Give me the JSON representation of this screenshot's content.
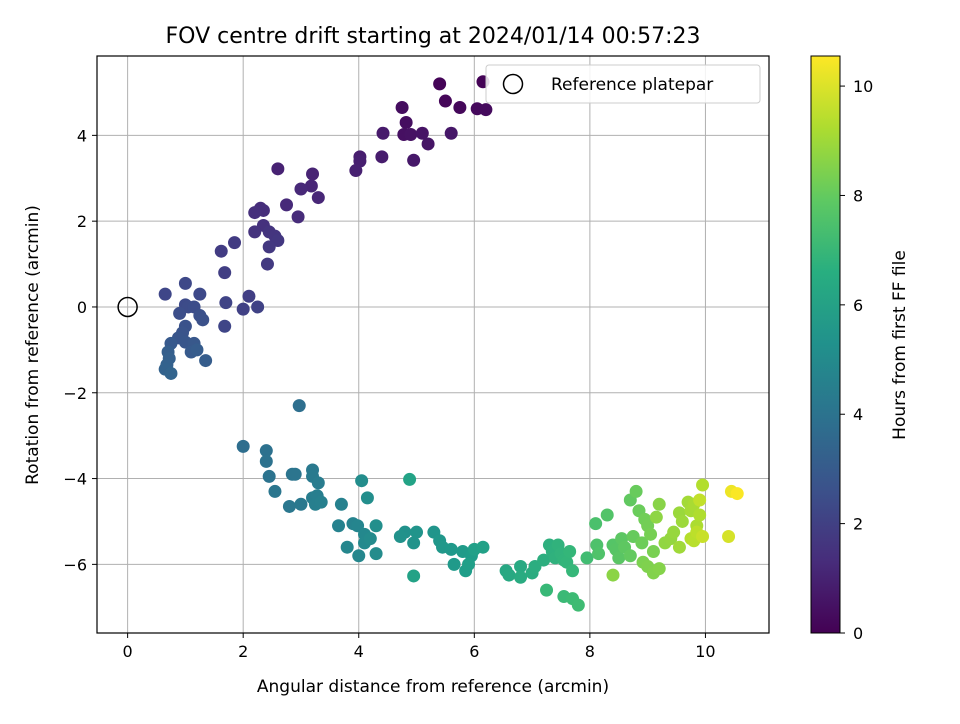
{
  "chart_data": {
    "type": "scatter",
    "title": "FOV centre drift starting at 2024/01/14 00:57:23",
    "xlabel": "Angular distance from reference (arcmin)",
    "ylabel": "Rotation from reference (arcmin)",
    "xlim": [
      -0.53,
      11.1
    ],
    "ylim": [
      -7.6,
      5.85
    ],
    "xticks": [
      0,
      2,
      4,
      6,
      8,
      10
    ],
    "yticks": [
      -6,
      -4,
      -2,
      0,
      2,
      4
    ],
    "grid": true,
    "legend": {
      "placement": "top-right",
      "entries": [
        "Reference platepar"
      ]
    },
    "reference_point": {
      "x": 0,
      "y": 0
    },
    "colorbar": {
      "label": "Hours from first FF file",
      "range": [
        0,
        10.55
      ],
      "ticks": [
        0,
        2,
        4,
        6,
        8,
        10
      ],
      "colormap": "viridis"
    },
    "points": [
      [
        6.15,
        5.25,
        0.05
      ],
      [
        5.4,
        5.2,
        0.1
      ],
      [
        5.5,
        4.8,
        0.15
      ],
      [
        5.75,
        4.65,
        0.2
      ],
      [
        6.05,
        4.62,
        0.25
      ],
      [
        6.2,
        4.6,
        0.3
      ],
      [
        4.75,
        4.65,
        0.35
      ],
      [
        4.82,
        4.3,
        0.4
      ],
      [
        4.78,
        4.02,
        0.45
      ],
      [
        4.9,
        4.02,
        0.5
      ],
      [
        5.1,
        4.05,
        0.55
      ],
      [
        5.2,
        3.8,
        0.6
      ],
      [
        5.6,
        4.05,
        0.65
      ],
      [
        4.95,
        3.42,
        0.7
      ],
      [
        4.42,
        4.05,
        0.75
      ],
      [
        4.4,
        3.5,
        0.8
      ],
      [
        4.02,
        3.5,
        0.85
      ],
      [
        4.02,
        3.4,
        0.9
      ],
      [
        3.95,
        3.18,
        0.95
      ],
      [
        2.6,
        3.22,
        1.0
      ],
      [
        3.2,
        3.1,
        1.05
      ],
      [
        3.18,
        2.82,
        1.1
      ],
      [
        3.3,
        2.55,
        1.15
      ],
      [
        3.0,
        2.75,
        1.2
      ],
      [
        2.75,
        2.38,
        1.25
      ],
      [
        2.95,
        2.1,
        1.3
      ],
      [
        2.3,
        2.3,
        1.35
      ],
      [
        2.35,
        2.25,
        1.4
      ],
      [
        2.2,
        2.2,
        1.45
      ],
      [
        2.35,
        1.9,
        1.5
      ],
      [
        2.2,
        1.75,
        1.55
      ],
      [
        2.45,
        1.75,
        1.6
      ],
      [
        2.55,
        1.65,
        1.65
      ],
      [
        2.6,
        1.55,
        1.7
      ],
      [
        2.45,
        1.4,
        1.75
      ],
      [
        2.42,
        1.0,
        1.8
      ],
      [
        1.85,
        1.5,
        1.85
      ],
      [
        1.62,
        1.3,
        1.9
      ],
      [
        1.68,
        0.8,
        1.95
      ],
      [
        2.1,
        0.25,
        2.0
      ],
      [
        2.0,
        -0.05,
        2.05
      ],
      [
        2.25,
        0.0,
        2.1
      ],
      [
        1.7,
        0.1,
        2.15
      ],
      [
        1.68,
        -0.45,
        2.2
      ],
      [
        0.65,
        0.3,
        2.25
      ],
      [
        1.0,
        0.55,
        2.3
      ],
      [
        1.25,
        0.3,
        2.35
      ],
      [
        1.0,
        0.05,
        2.4
      ],
      [
        1.05,
        0.0,
        2.45
      ],
      [
        1.15,
        0.0,
        2.5
      ],
      [
        0.9,
        -0.15,
        2.55
      ],
      [
        1.25,
        -0.2,
        2.6
      ],
      [
        1.3,
        -0.3,
        2.65
      ],
      [
        1.0,
        -0.45,
        2.7
      ],
      [
        0.95,
        -0.6,
        2.75
      ],
      [
        0.88,
        -0.72,
        2.8
      ],
      [
        1.0,
        -0.82,
        2.85
      ],
      [
        1.15,
        -0.85,
        2.9
      ],
      [
        0.75,
        -0.85,
        2.95
      ],
      [
        1.1,
        -1.05,
        3.0
      ],
      [
        1.2,
        -1.0,
        3.05
      ],
      [
        1.35,
        -1.25,
        3.1
      ],
      [
        0.7,
        -1.05,
        3.15
      ],
      [
        0.72,
        -1.2,
        3.2
      ],
      [
        0.68,
        -1.35,
        3.25
      ],
      [
        0.65,
        -1.45,
        3.3
      ],
      [
        0.75,
        -1.55,
        3.35
      ],
      [
        2.0,
        -3.25,
        3.8
      ],
      [
        2.97,
        -2.3,
        3.85
      ],
      [
        2.4,
        -3.35,
        3.9
      ],
      [
        2.4,
        -3.6,
        3.95
      ],
      [
        2.45,
        -3.95,
        4.0
      ],
      [
        2.85,
        -3.9,
        4.05
      ],
      [
        2.9,
        -3.9,
        4.1
      ],
      [
        2.55,
        -4.3,
        4.15
      ],
      [
        2.8,
        -4.65,
        4.2
      ],
      [
        3.0,
        -4.6,
        4.25
      ],
      [
        3.2,
        -3.8,
        4.3
      ],
      [
        3.2,
        -3.95,
        4.35
      ],
      [
        3.3,
        -4.1,
        4.4
      ],
      [
        3.2,
        -4.45,
        4.45
      ],
      [
        3.28,
        -4.4,
        4.5
      ],
      [
        3.25,
        -4.6,
        4.55
      ],
      [
        3.35,
        -4.55,
        4.6
      ],
      [
        3.7,
        -4.6,
        4.65
      ],
      [
        3.65,
        -5.1,
        4.7
      ],
      [
        3.9,
        -5.05,
        4.75
      ],
      [
        3.98,
        -5.1,
        4.8
      ],
      [
        3.8,
        -5.6,
        4.85
      ],
      [
        4.0,
        -5.8,
        4.9
      ],
      [
        4.1,
        -5.3,
        4.95
      ],
      [
        4.1,
        -5.5,
        5.0
      ],
      [
        4.2,
        -5.4,
        5.05
      ],
      [
        4.3,
        -5.75,
        5.1
      ],
      [
        4.05,
        -4.05,
        5.15
      ],
      [
        4.15,
        -4.45,
        5.2
      ],
      [
        4.3,
        -5.1,
        5.25
      ],
      [
        4.8,
        -5.25,
        5.3
      ],
      [
        4.72,
        -5.35,
        5.35
      ],
      [
        4.95,
        -5.5,
        5.4
      ],
      [
        5.0,
        -5.25,
        5.45
      ],
      [
        5.3,
        -5.25,
        5.5
      ],
      [
        5.4,
        -5.45,
        5.55
      ],
      [
        5.45,
        -5.6,
        5.6
      ],
      [
        5.6,
        -5.65,
        5.65
      ],
      [
        5.65,
        -6.0,
        5.7
      ],
      [
        5.8,
        -5.7,
        5.75
      ],
      [
        5.95,
        -5.8,
        5.8
      ],
      [
        5.85,
        -6.15,
        5.85
      ],
      [
        5.9,
        -6.0,
        5.9
      ],
      [
        6.0,
        -5.65,
        5.95
      ],
      [
        6.15,
        -5.6,
        6.0
      ],
      [
        4.95,
        -6.27,
        6.05
      ],
      [
        4.88,
        -4.02,
        6.1
      ],
      [
        6.55,
        -6.15,
        6.3
      ],
      [
        6.6,
        -6.25,
        6.35
      ],
      [
        6.8,
        -6.05,
        6.4
      ],
      [
        6.8,
        -6.3,
        6.45
      ],
      [
        7.0,
        -6.2,
        6.5
      ],
      [
        7.05,
        -6.05,
        6.55
      ],
      [
        7.2,
        -5.9,
        6.6
      ],
      [
        7.3,
        -5.55,
        6.65
      ],
      [
        7.35,
        -5.7,
        6.7
      ],
      [
        7.4,
        -5.85,
        6.75
      ],
      [
        7.45,
        -5.55,
        6.8
      ],
      [
        7.5,
        -5.75,
        6.85
      ],
      [
        7.55,
        -5.9,
        6.9
      ],
      [
        7.6,
        -5.95,
        6.95
      ],
      [
        7.65,
        -5.7,
        7.0
      ],
      [
        7.7,
        -6.15,
        7.05
      ],
      [
        7.25,
        -6.6,
        7.1
      ],
      [
        7.55,
        -6.75,
        7.15
      ],
      [
        7.7,
        -6.8,
        7.2
      ],
      [
        7.8,
        -6.95,
        7.25
      ],
      [
        7.95,
        -5.85,
        7.3
      ],
      [
        8.1,
        -5.05,
        7.5
      ],
      [
        8.12,
        -5.55,
        7.55
      ],
      [
        8.15,
        -5.75,
        7.6
      ],
      [
        8.3,
        -4.85,
        7.65
      ],
      [
        8.4,
        -5.55,
        7.7
      ],
      [
        8.45,
        -5.65,
        7.75
      ],
      [
        8.5,
        -5.85,
        7.8
      ],
      [
        8.55,
        -5.4,
        7.85
      ],
      [
        8.6,
        -5.6,
        7.9
      ],
      [
        8.7,
        -4.5,
        7.95
      ],
      [
        8.7,
        -5.8,
        8.0
      ],
      [
        8.75,
        -5.35,
        8.05
      ],
      [
        8.8,
        -4.3,
        8.1
      ],
      [
        8.85,
        -4.75,
        8.15
      ],
      [
        8.9,
        -5.5,
        8.2
      ],
      [
        8.95,
        -4.95,
        8.25
      ],
      [
        9.0,
        -5.1,
        8.3
      ],
      [
        9.05,
        -5.3,
        8.35
      ],
      [
        9.1,
        -5.7,
        8.4
      ],
      [
        8.92,
        -5.95,
        8.45
      ],
      [
        9.0,
        -6.05,
        8.5
      ],
      [
        9.1,
        -6.2,
        8.55
      ],
      [
        9.2,
        -6.1,
        8.6
      ],
      [
        9.2,
        -4.6,
        8.65
      ],
      [
        8.4,
        -6.25,
        8.7
      ],
      [
        9.15,
        -4.9,
        8.75
      ],
      [
        9.3,
        -5.5,
        8.8
      ],
      [
        9.4,
        -5.4,
        8.85
      ],
      [
        9.45,
        -5.25,
        8.9
      ],
      [
        9.55,
        -4.8,
        8.95
      ],
      [
        9.6,
        -5.0,
        9.0
      ],
      [
        9.55,
        -5.6,
        9.05
      ],
      [
        9.7,
        -4.55,
        9.1
      ],
      [
        9.75,
        -4.75,
        9.15
      ],
      [
        9.8,
        -4.6,
        9.2
      ],
      [
        9.85,
        -5.1,
        9.25
      ],
      [
        9.9,
        -4.85,
        9.3
      ],
      [
        9.95,
        -4.15,
        9.35
      ],
      [
        9.75,
        -5.4,
        9.4
      ],
      [
        9.8,
        -5.45,
        9.45
      ],
      [
        9.85,
        -5.25,
        9.5
      ],
      [
        9.9,
        -4.5,
        9.6
      ],
      [
        9.95,
        -5.35,
        9.7
      ],
      [
        10.4,
        -5.35,
        9.9
      ],
      [
        10.45,
        -4.3,
        10.3
      ],
      [
        10.55,
        -4.35,
        10.5
      ]
    ]
  }
}
